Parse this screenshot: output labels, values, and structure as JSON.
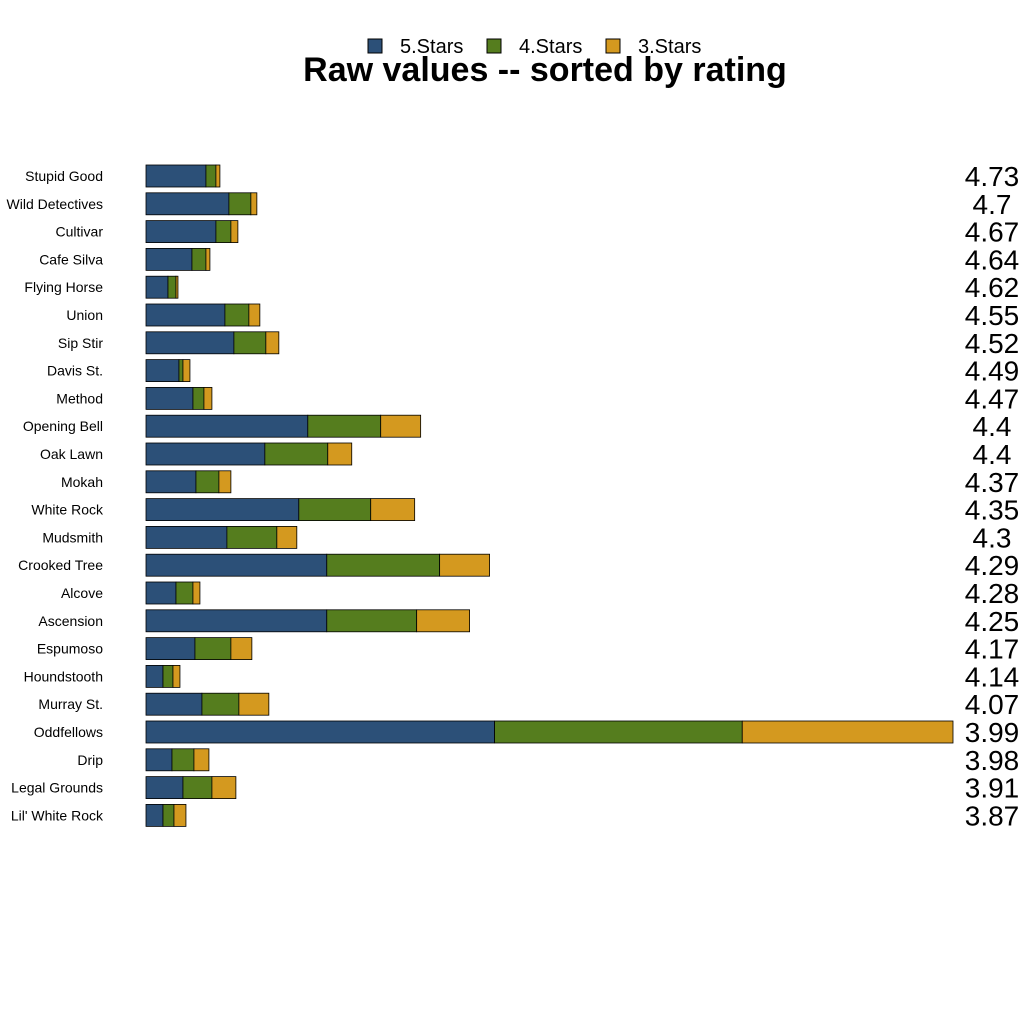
{
  "chart_data": {
    "type": "bar",
    "orientation": "horizontal",
    "stacked": true,
    "title": "Raw values -- sorted by rating",
    "xlabel": "",
    "ylabel": "",
    "grid": false,
    "legend_position": "top",
    "categories": [
      "Stupid Good",
      "Wild Detectives",
      "Cultivar",
      "Cafe Silva",
      "Flying Horse",
      "Union",
      "Sip Stir",
      "Davis St.",
      "Method",
      "Opening Bell",
      "Oak Lawn",
      "Mokah",
      "White Rock",
      "Mudsmith",
      "Crooked Tree",
      "Alcove",
      "Ascension",
      "Espumoso",
      "Houndstooth",
      "Murray St.",
      "Oddfellows",
      "Drip",
      "Legal Grounds",
      "Lil' White Rock"
    ],
    "series": [
      {
        "name": "5.Stars",
        "color": "#2c5078",
        "values": [
          60,
          83,
          70,
          46,
          22,
          79,
          88,
          33,
          47,
          162,
          119,
          50,
          153,
          81,
          181,
          30,
          181,
          49,
          17,
          56,
          349,
          26,
          37,
          17
        ]
      },
      {
        "name": "4.Stars",
        "color": "#557d1e",
        "values": [
          10,
          22,
          15,
          14,
          8,
          24,
          32,
          4,
          11,
          73,
          63,
          23,
          72,
          50,
          113,
          17,
          90,
          36,
          10,
          37,
          248,
          22,
          29,
          11
        ]
      },
      {
        "name": "3.Stars",
        "color": "#d4991f",
        "values": [
          4,
          6,
          7,
          4,
          2,
          11,
          13,
          7,
          8,
          40,
          24,
          12,
          44,
          20,
          50,
          7,
          53,
          21,
          7,
          30,
          211,
          15,
          24,
          12
        ]
      }
    ],
    "ratings": [
      "4.73",
      "4.7",
      "4.67",
      "4.64",
      "4.62",
      "4.55",
      "4.52",
      "4.49",
      "4.47",
      "4.4",
      "4.4",
      "4.37",
      "4.35",
      "4.3",
      "4.29",
      "4.28",
      "4.25",
      "4.17",
      "4.14",
      "4.07",
      "3.99",
      "3.98",
      "3.91",
      "3.87"
    ],
    "xlim": [
      0,
      808
    ]
  }
}
